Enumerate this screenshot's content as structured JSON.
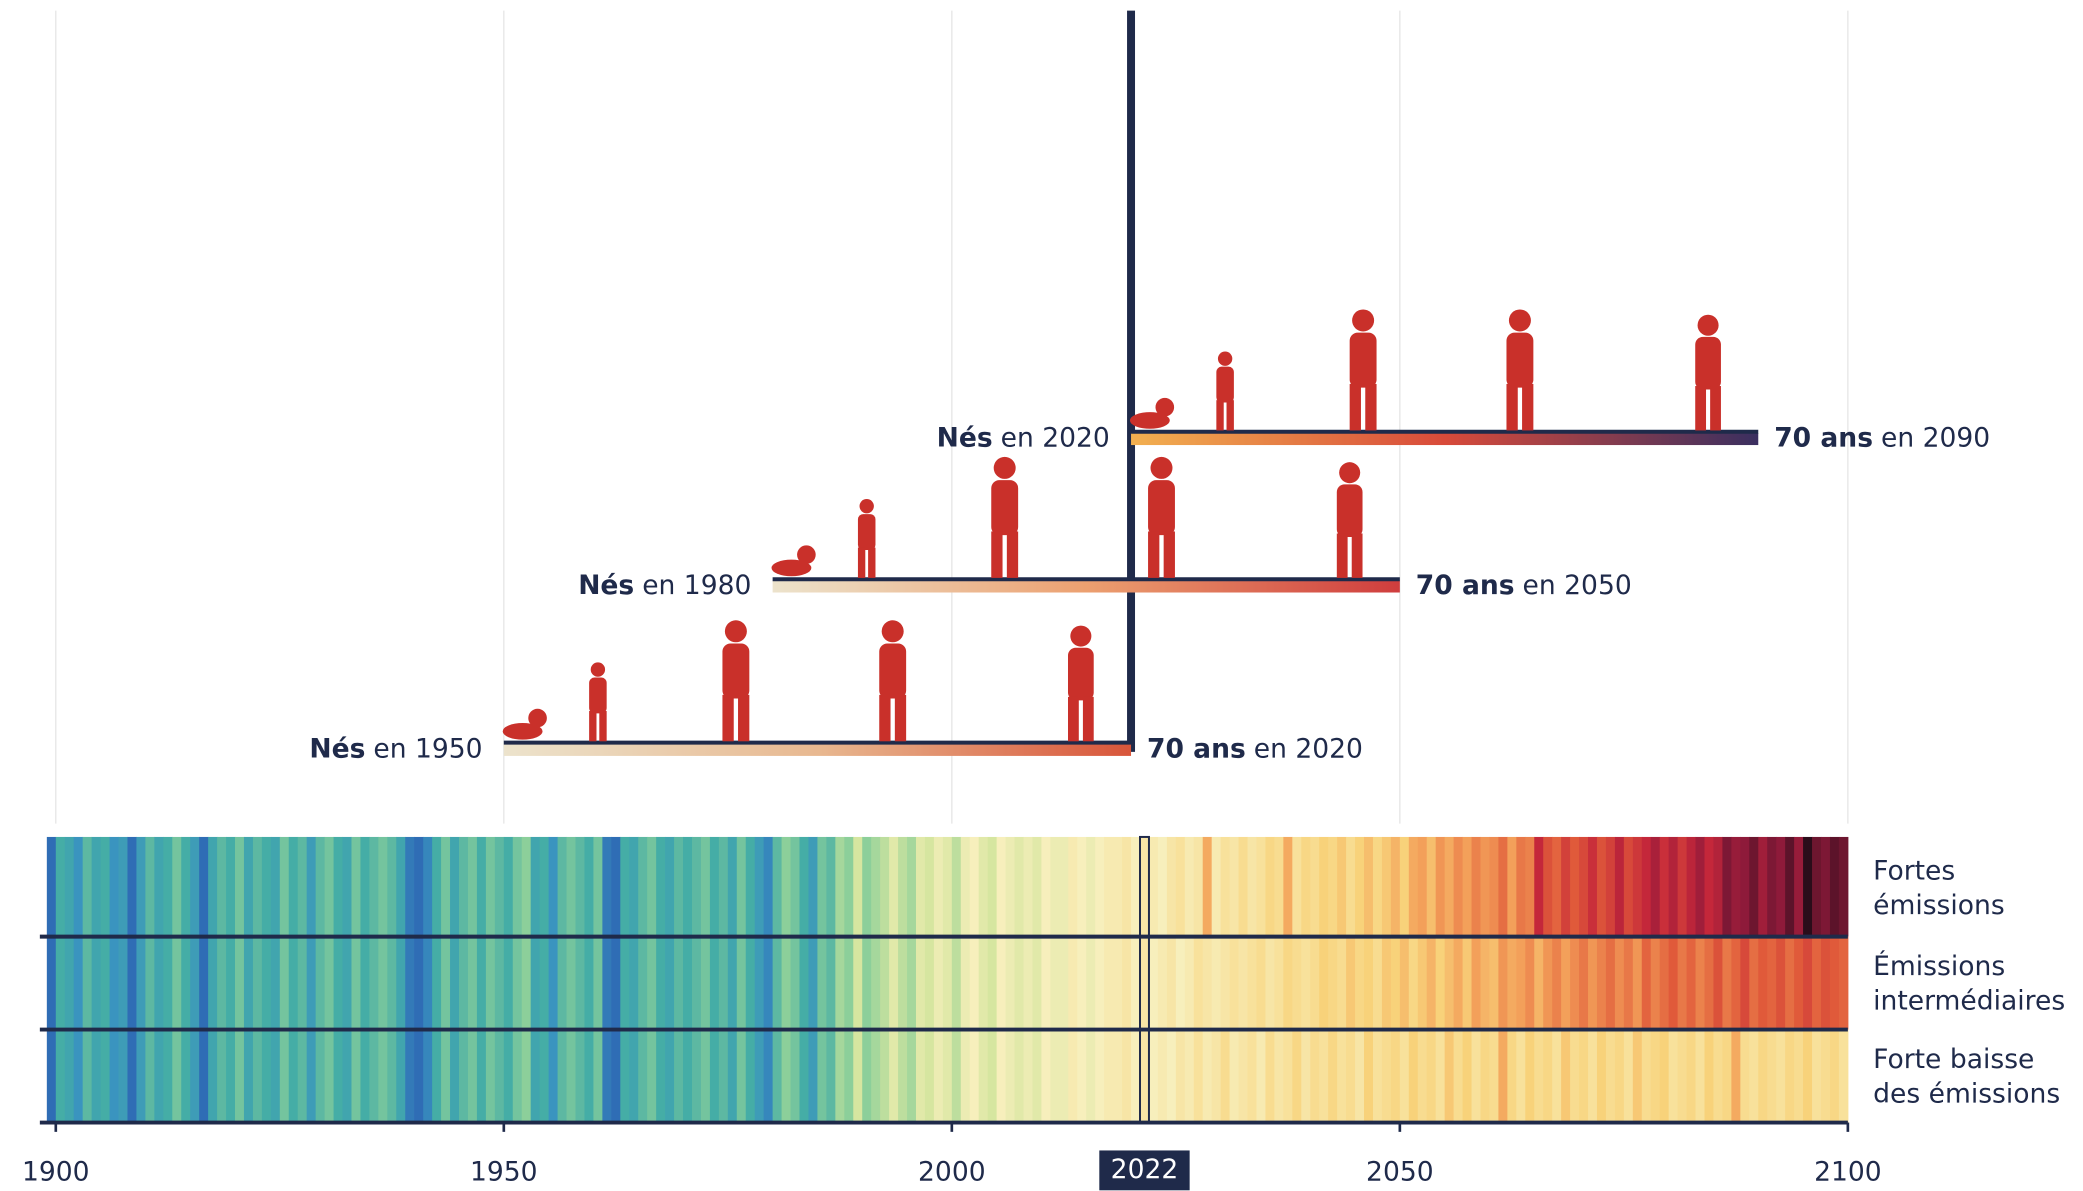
{
  "chart_data": {
    "type": "warming-stripes",
    "xlim": [
      1900,
      2100
    ],
    "xticks": [
      1900,
      1950,
      2000,
      2050,
      2100
    ],
    "highlight_year": 2022,
    "color_scale": [
      {
        "value": -0.6,
        "color": "#2f6db5"
      },
      {
        "value": -0.3,
        "color": "#3a94bf"
      },
      {
        "value": 0,
        "color": "#45ada6"
      },
      {
        "value": 0.3,
        "color": "#8ccf9a"
      },
      {
        "value": 0.6,
        "color": "#d6e6a0"
      },
      {
        "value": 0.9,
        "color": "#f7efbc"
      },
      {
        "value": 1.5,
        "color": "#f8d27a"
      },
      {
        "value": 2.0,
        "color": "#f3a05a"
      },
      {
        "value": 2.7,
        "color": "#e05a3a"
      },
      {
        "value": 3.3,
        "color": "#c4273a"
      },
      {
        "value": 3.9,
        "color": "#8e1a3a"
      },
      {
        "value": 4.5,
        "color": "#2a0d1a"
      }
    ],
    "observed": {
      "x_start": 1900,
      "values": [
        -0.6,
        0.0,
        -0.1,
        -0.3,
        0.1,
        -0.1,
        0.0,
        -0.3,
        -0.2,
        -0.6,
        -0.2,
        0.1,
        -0.1,
        0.0,
        0.2,
        0.0,
        -0.2,
        -0.6,
        -0.1,
        0.1,
        0.0,
        0.2,
        -0.1,
        0.1,
        0.0,
        -0.1,
        0.2,
        0.0,
        0.1,
        -0.2,
        0.1,
        0.2,
        0.0,
        -0.1,
        0.2,
        0.0,
        0.1,
        0.2,
        0.1,
        -0.1,
        -0.5,
        -0.6,
        -0.4,
        0.0,
        0.2,
        -0.1,
        0.1,
        0.2,
        0.0,
        0.2,
        0.1,
        0.0,
        0.2,
        0.3,
        -0.1,
        0.0,
        -0.3,
        0.1,
        0.2,
        0.1,
        0.0,
        0.2,
        -0.5,
        -0.6,
        0.0,
        -0.1,
        0.1,
        0.2,
        0.0,
        -0.1,
        0.1,
        0.0,
        0.1,
        0.2,
        0.0,
        0.1,
        -0.1,
        0.2,
        0.0,
        -0.2,
        -0.4,
        0.1,
        0.3,
        0.2,
        0.0,
        -0.2,
        0.2,
        0.1,
        0.4,
        0.3,
        0.6,
        0.3,
        0.4,
        0.5,
        0.7,
        0.5,
        0.4,
        0.7,
        0.6,
        0.8,
        0.7,
        0.5,
        0.8,
        0.9,
        0.7,
        0.6,
        0.9,
        0.8,
        0.7,
        0.8,
        0.7,
        0.9,
        0.8,
        0.8,
        1.0,
        0.9,
        0.8,
        0.9,
        1.0,
        1.0,
        1.1,
        0.9,
        1.1
      ]
    },
    "scenarios": [
      {
        "name": "Fortes émissions",
        "x_start": 2023,
        "values": [
          1.0,
          0.9,
          1.1,
          1.2,
          1.0,
          1.1,
          1.9,
          1.0,
          1.2,
          1.1,
          1.3,
          1.1,
          1.2,
          1.4,
          1.3,
          1.9,
          1.2,
          1.4,
          1.3,
          1.5,
          1.4,
          1.6,
          1.3,
          1.5,
          1.7,
          1.4,
          1.6,
          1.8,
          1.5,
          1.9,
          2.0,
          1.7,
          2.1,
          1.9,
          2.2,
          2.0,
          2.3,
          2.1,
          2.2,
          2.5,
          2.0,
          2.4,
          2.3,
          3.3,
          2.8,
          2.6,
          3.0,
          2.7,
          2.9,
          3.2,
          2.8,
          3.0,
          3.4,
          2.9,
          3.1,
          3.3,
          3.6,
          3.2,
          3.5,
          3.1,
          3.4,
          3.7,
          3.3,
          3.5,
          4.0,
          3.8,
          3.9,
          4.1,
          3.7,
          4.0,
          3.9,
          4.2,
          3.8,
          4.5,
          4.1,
          4.0,
          4.2,
          4.1
        ]
      },
      {
        "name": "Émissions intermédiaires",
        "x_start": 2023,
        "values": [
          0.9,
          1.0,
          1.1,
          0.9,
          1.0,
          1.2,
          1.1,
          1.0,
          1.1,
          1.2,
          1.1,
          1.2,
          1.3,
          1.1,
          1.2,
          1.4,
          1.3,
          1.2,
          1.3,
          1.5,
          1.4,
          1.3,
          1.6,
          1.4,
          1.5,
          1.3,
          1.6,
          1.5,
          1.7,
          1.4,
          1.6,
          1.8,
          1.5,
          1.7,
          1.9,
          1.6,
          2.0,
          1.8,
          1.7,
          2.1,
          1.9,
          2.0,
          2.2,
          1.8,
          2.1,
          2.3,
          2.0,
          2.2,
          2.4,
          2.1,
          2.3,
          2.5,
          2.2,
          2.4,
          2.1,
          2.6,
          2.3,
          2.5,
          2.7,
          2.4,
          2.6,
          2.3,
          2.5,
          2.8,
          2.4,
          2.6,
          2.9,
          2.5,
          2.7,
          2.6,
          2.8,
          2.5,
          2.7,
          2.9,
          2.6,
          2.8,
          2.7,
          2.6
        ]
      },
      {
        "name": "Forte baisse des émissions",
        "x_start": 2023,
        "values": [
          0.9,
          1.0,
          0.9,
          1.1,
          1.0,
          1.2,
          1.0,
          1.1,
          1.3,
          1.0,
          1.1,
          1.2,
          1.0,
          1.3,
          1.1,
          1.2,
          1.4,
          1.1,
          1.3,
          1.2,
          1.4,
          1.2,
          1.3,
          1.1,
          1.5,
          1.2,
          1.3,
          1.4,
          1.2,
          1.5,
          1.3,
          1.4,
          1.2,
          1.6,
          1.3,
          1.5,
          1.2,
          1.4,
          1.3,
          1.9,
          1.4,
          1.2,
          1.5,
          1.3,
          1.4,
          1.2,
          1.6,
          1.3,
          1.4,
          1.2,
          1.5,
          1.3,
          1.4,
          1.2,
          1.6,
          1.3,
          1.4,
          1.5,
          1.2,
          1.3,
          1.4,
          1.2,
          1.5,
          1.3,
          1.4,
          1.9,
          1.3,
          1.2,
          1.4,
          1.3,
          1.2,
          1.4,
          1.3,
          1.5,
          1.2,
          1.3,
          1.4,
          1.2
        ]
      }
    ],
    "cohorts": [
      {
        "birth_bold": "Nés",
        "birth_rest": "en 1950",
        "start": 1950,
        "end": 2020,
        "end_bold": "70 ans",
        "end_rest": "en 2020",
        "colors": [
          "#ece3cc",
          "#e8b890",
          "#d8553a"
        ]
      },
      {
        "birth_bold": "Nés",
        "birth_rest": "en 1980",
        "start": 1980,
        "end": 2050,
        "end_bold": "70 ans",
        "end_rest": "en 2050",
        "colors": [
          "#ece3cc",
          "#eca070",
          "#cf3d3d"
        ]
      },
      {
        "birth_bold": "Nés",
        "birth_rest": "en 2020",
        "start": 2020,
        "end": 2090,
        "end_bold": "70 ans",
        "end_rest": "en 2090",
        "colors": [
          "#f2b050",
          "#d84a3a",
          "#3a2f60"
        ]
      }
    ]
  }
}
